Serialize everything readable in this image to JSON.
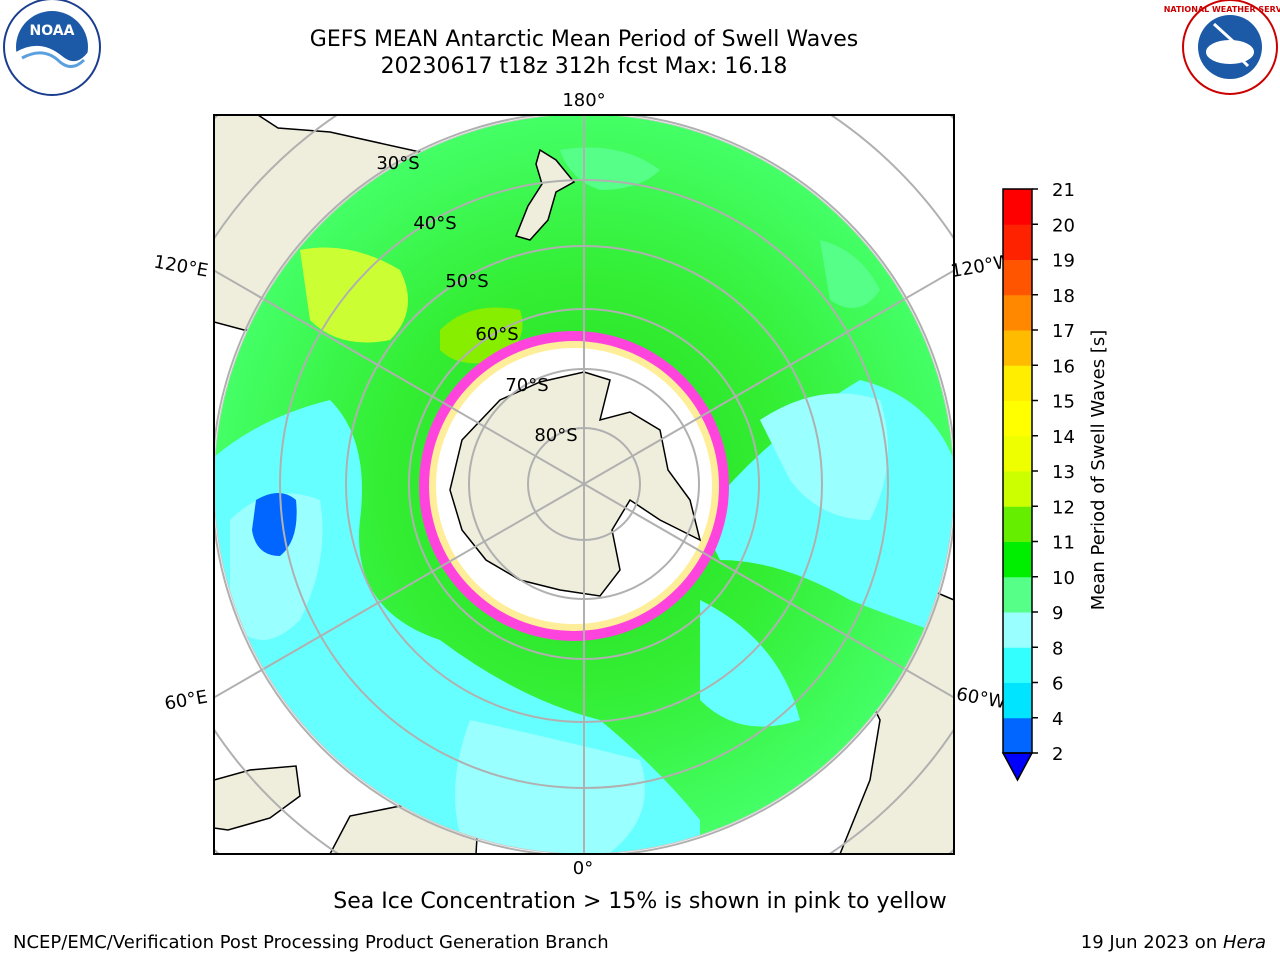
{
  "title_line1": "GEFS MEAN Antarctic Mean Period of Swell Waves",
  "title_line2": "20230617 t18z 312h fcst   Max: 16.18",
  "footer_note": "Sea Ice Concentration > 15% is shown in pink to yellow",
  "credit": "NCEP/EMC/Verification Post Processing Product Generation Branch",
  "date_text": "19 Jun 2023 on ",
  "date_host": "Hera",
  "logos": {
    "left": "NOAA",
    "right": "NATIONAL WEATHER SERVICE"
  },
  "map": {
    "projection": "south-polar-stereographic",
    "lon_labels": {
      "top": "180°",
      "upper_left": "120°E",
      "upper_right": "120°W",
      "lower_left": "60°E",
      "lower_right": "60°W",
      "bottom": "0°"
    },
    "lat_labels": [
      "30°S",
      "40°S",
      "50°S",
      "60°S",
      "70°S",
      "80°S"
    ]
  },
  "colorbar": {
    "label": "Mean Period of Swell Waves [s]",
    "ticks": [
      "2",
      "4",
      "6",
      "8",
      "9",
      "10",
      "11",
      "12",
      "13",
      "14",
      "15",
      "16",
      "17",
      "18",
      "19",
      "20",
      "21"
    ],
    "colors": [
      "#0066ff",
      "#00e4ff",
      "#33ffff",
      "#99ffff",
      "#55ff88",
      "#00ee00",
      "#66ee00",
      "#ccff00",
      "#eeff00",
      "#ffff00",
      "#ffee00",
      "#ffbb00",
      "#ff8800",
      "#ff5500",
      "#ff2200",
      "#ff0000"
    ],
    "extend_color": "#0000ff"
  }
}
